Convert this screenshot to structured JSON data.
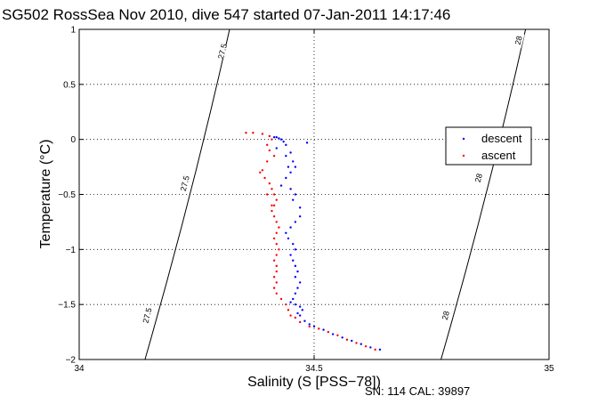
{
  "chart_data": {
    "type": "scatter",
    "title": "SG502 RossSea Nov 2010, dive 547 started 07-Jan-2011 14:17:46",
    "xlabel": "Salinity (S [PSS−78])",
    "ylabel": "Temperature (°C)",
    "xlim": [
      34,
      35
    ],
    "ylim": [
      -2,
      1
    ],
    "xticks": [
      34,
      34.5,
      35
    ],
    "xtick_labels": [
      "34",
      "34.5",
      "35"
    ],
    "yticks": [
      -2,
      -1.5,
      -1,
      -0.5,
      0,
      0.5,
      1
    ],
    "ytick_labels": [
      "−2",
      "−1.5",
      "−1",
      "−0.5",
      "0",
      "0.5",
      "1"
    ],
    "grid": true,
    "legend_position": "right",
    "series": [
      {
        "name": "descent",
        "color": "#0000ff",
        "points": [
          [
            34.415,
            0.02
          ],
          [
            34.42,
            0.02
          ],
          [
            34.425,
            0.01
          ],
          [
            34.43,
            0.0
          ],
          [
            34.435,
            -0.02
          ],
          [
            34.44,
            -0.05
          ],
          [
            34.42,
            -0.08
          ],
          [
            34.44,
            -0.15
          ],
          [
            34.45,
            -0.12
          ],
          [
            34.455,
            -0.2
          ],
          [
            34.445,
            -0.25
          ],
          [
            34.45,
            -0.3
          ],
          [
            34.44,
            -0.35
          ],
          [
            34.43,
            -0.42
          ],
          [
            34.45,
            -0.45
          ],
          [
            34.46,
            -0.5
          ],
          [
            34.455,
            -0.55
          ],
          [
            34.47,
            -0.62
          ],
          [
            34.47,
            -0.7
          ],
          [
            34.46,
            -0.75
          ],
          [
            34.45,
            -0.8
          ],
          [
            34.44,
            -0.85
          ],
          [
            34.445,
            -0.9
          ],
          [
            34.455,
            -0.95
          ],
          [
            34.46,
            -1.0
          ],
          [
            34.45,
            -1.05
          ],
          [
            34.455,
            -1.1
          ],
          [
            34.46,
            -1.15
          ],
          [
            34.465,
            -1.2
          ],
          [
            34.46,
            -1.25
          ],
          [
            34.47,
            -1.3
          ],
          [
            34.465,
            -1.35
          ],
          [
            34.46,
            -1.4
          ],
          [
            34.455,
            -1.45
          ],
          [
            34.45,
            -1.48
          ],
          [
            34.46,
            -1.5
          ],
          [
            34.47,
            -1.52
          ],
          [
            34.475,
            -1.55
          ],
          [
            34.465,
            -1.58
          ],
          [
            34.47,
            -1.6
          ],
          [
            34.48,
            -1.65
          ],
          [
            34.49,
            -1.68
          ],
          [
            34.5,
            -1.7
          ],
          [
            34.52,
            -1.73
          ],
          [
            34.54,
            -1.77
          ],
          [
            34.56,
            -1.8
          ],
          [
            34.58,
            -1.83
          ],
          [
            34.6,
            -1.86
          ],
          [
            34.62,
            -1.89
          ],
          [
            34.64,
            -1.91
          ],
          [
            34.485,
            -0.03
          ],
          [
            34.46,
            -0.25
          ]
        ]
      },
      {
        "name": "ascent",
        "color": "#ff0000",
        "points": [
          [
            34.355,
            0.06
          ],
          [
            34.37,
            0.06
          ],
          [
            34.39,
            0.05
          ],
          [
            34.405,
            0.03
          ],
          [
            34.41,
            0.0
          ],
          [
            34.4,
            -0.05
          ],
          [
            34.405,
            -0.1
          ],
          [
            34.415,
            -0.15
          ],
          [
            34.4,
            -0.2
          ],
          [
            34.39,
            -0.28
          ],
          [
            34.395,
            -0.35
          ],
          [
            34.405,
            -0.4
          ],
          [
            34.41,
            -0.45
          ],
          [
            34.415,
            -0.5
          ],
          [
            34.42,
            -0.55
          ],
          [
            34.415,
            -0.6
          ],
          [
            34.41,
            -0.65
          ],
          [
            34.415,
            -0.7
          ],
          [
            34.42,
            -0.75
          ],
          [
            34.425,
            -0.8
          ],
          [
            34.42,
            -0.85
          ],
          [
            34.415,
            -0.9
          ],
          [
            34.42,
            -0.95
          ],
          [
            34.425,
            -1.0
          ],
          [
            34.42,
            -1.05
          ],
          [
            34.415,
            -1.1
          ],
          [
            34.42,
            -1.15
          ],
          [
            34.42,
            -1.2
          ],
          [
            34.415,
            -1.25
          ],
          [
            34.42,
            -1.3
          ],
          [
            34.415,
            -1.35
          ],
          [
            34.42,
            -1.4
          ],
          [
            34.43,
            -1.45
          ],
          [
            34.44,
            -1.5
          ],
          [
            34.445,
            -1.55
          ],
          [
            34.45,
            -1.6
          ],
          [
            34.46,
            -1.62
          ],
          [
            34.47,
            -1.66
          ],
          [
            34.49,
            -1.7
          ],
          [
            34.51,
            -1.72
          ],
          [
            34.53,
            -1.75
          ],
          [
            34.55,
            -1.78
          ],
          [
            34.57,
            -1.82
          ],
          [
            34.59,
            -1.85
          ],
          [
            34.61,
            -1.88
          ],
          [
            34.63,
            -1.91
          ],
          [
            34.4,
            -0.5
          ],
          [
            34.385,
            -0.3
          ],
          [
            34.41,
            -0.6
          ]
        ]
      }
    ],
    "isopycnals": [
      {
        "label": "27.5",
        "start": [
          34.14,
          -2.0
        ],
        "end": [
          34.32,
          1.0
        ],
        "label_positions": [
          [
            34.145,
            -1.6
          ],
          [
            34.225,
            -0.4
          ],
          [
            34.305,
            0.8
          ]
        ]
      },
      {
        "label": "28",
        "start": [
          34.77,
          -2.0
        ],
        "end": [
          34.95,
          1.0
        ],
        "label_positions": [
          [
            34.78,
            -1.6
          ],
          [
            34.85,
            -0.35
          ],
          [
            34.935,
            0.9
          ]
        ]
      }
    ]
  },
  "footer": {
    "serial": "SN: 114  CAL: 39897"
  }
}
